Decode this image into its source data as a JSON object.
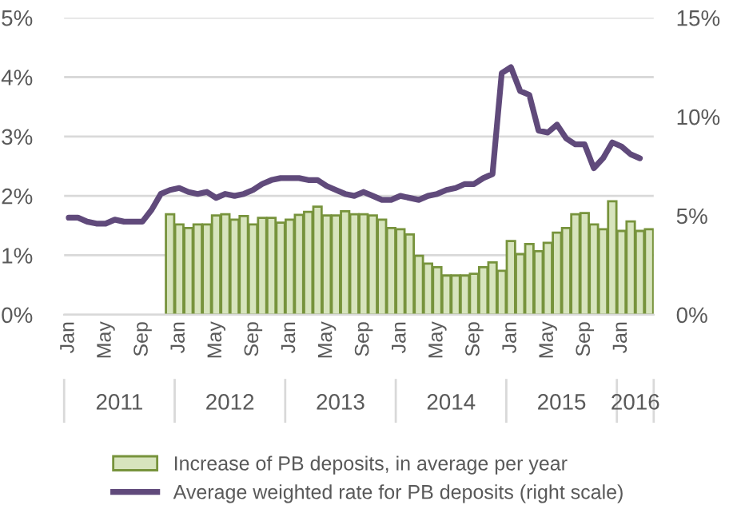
{
  "chart_data": {
    "type": "bar",
    "categories": [
      "Jan",
      null,
      null,
      null,
      "May",
      null,
      null,
      null,
      "Sep",
      null,
      null,
      null,
      "Jan",
      null,
      null,
      null,
      "May",
      null,
      null,
      null,
      "Sep",
      null,
      null,
      null,
      "Jan",
      null,
      null,
      null,
      "May",
      null,
      null,
      null,
      "Sep",
      null,
      null,
      null,
      "Jan",
      null,
      null,
      null,
      "May",
      null,
      null,
      null,
      "Sep",
      null,
      null,
      null,
      "Jan",
      null,
      null,
      null,
      "May",
      null,
      null,
      null,
      "Sep",
      null,
      null,
      null,
      "Jan",
      null,
      null,
      null
    ],
    "series": [
      {
        "name": "Increase of PB deposits, in average per year",
        "color": "#d7e4bd",
        "values": [
          null,
          null,
          null,
          null,
          null,
          null,
          null,
          null,
          null,
          null,
          null,
          1.69,
          1.52,
          1.46,
          1.52,
          1.52,
          1.67,
          1.69,
          1.6,
          1.66,
          1.52,
          1.63,
          1.63,
          1.55,
          1.6,
          1.68,
          1.73,
          1.82,
          1.67,
          1.67,
          1.74,
          1.69,
          1.69,
          1.67,
          1.6,
          1.46,
          1.44,
          1.35,
          0.99,
          0.86,
          0.8,
          0.66,
          0.66,
          0.66,
          0.69,
          0.8,
          0.88,
          0.74,
          1.24,
          1.02,
          1.19,
          1.07,
          1.21,
          1.38,
          1.46,
          1.69,
          1.71,
          1.52,
          1.44,
          1.91,
          1.41,
          1.57,
          1.41,
          1.44
        ]
      },
      {
        "name": "Average weighted rate for PB deposits (right scale)",
        "type": "line",
        "axis": "y2",
        "color": "#604a7b",
        "values": [
          4.9,
          4.9,
          4.7,
          4.6,
          4.6,
          4.8,
          4.7,
          4.7,
          4.7,
          5.3,
          6.1,
          6.3,
          6.4,
          6.2,
          6.1,
          6.2,
          5.9,
          6.1,
          6.0,
          6.1,
          6.3,
          6.6,
          6.8,
          6.9,
          6.9,
          6.9,
          6.8,
          6.8,
          6.5,
          6.3,
          6.1,
          6.0,
          6.2,
          6.0,
          5.8,
          5.8,
          6.0,
          5.9,
          5.8,
          6.0,
          6.1,
          6.3,
          6.4,
          6.6,
          6.6,
          6.9,
          7.1,
          12.2,
          12.5,
          11.3,
          11.1,
          9.3,
          9.2,
          9.6,
          8.9,
          8.6,
          8.6,
          7.4,
          7.9,
          8.7,
          8.5,
          8.1,
          7.9,
          null
        ]
      }
    ],
    "ylim": [
      0,
      5
    ],
    "yticks": [
      {
        "value": 0,
        "label": "0%"
      },
      {
        "value": 1,
        "label": "1%"
      },
      {
        "value": 2,
        "label": "2%"
      },
      {
        "value": 3,
        "label": "3%"
      },
      {
        "value": 4,
        "label": "4%"
      },
      {
        "value": 5,
        "label": "5%"
      }
    ],
    "y2lim": [
      0,
      15
    ],
    "y2ticks": [
      {
        "value": 0,
        "label": "0%"
      },
      {
        "value": 5,
        "label": "5%"
      },
      {
        "value": 10,
        "label": "10%"
      },
      {
        "value": 15,
        "label": "15%"
      }
    ],
    "annotations": [
      "2011",
      "2012",
      "2013",
      "2014",
      "2015",
      "2016"
    ],
    "grid": "y",
    "legend": "bottom",
    "marker": "none",
    "line_style": "solid"
  }
}
